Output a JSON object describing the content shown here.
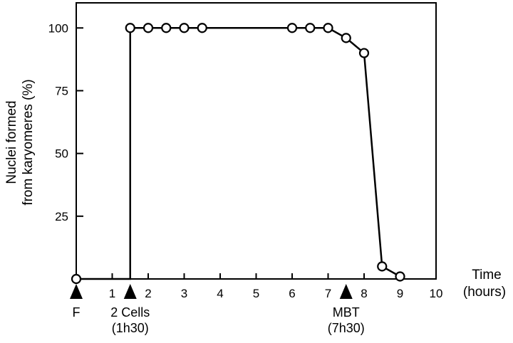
{
  "chart_data": {
    "type": "line",
    "ylabel_lines": [
      "Nuclei formed",
      "from karyomeres (%)"
    ],
    "xlabel_lines": [
      "Time",
      "(hours)"
    ],
    "xlim": [
      0,
      10
    ],
    "ylim": [
      0,
      110
    ],
    "x_ticks": [
      "1",
      "2",
      "3",
      "4",
      "5",
      "6",
      "7",
      "8",
      "9",
      "10"
    ],
    "y_ticks": [
      "25",
      "50",
      "75",
      "100"
    ],
    "grid": false,
    "series": [
      {
        "x": [
          0,
          1.5,
          1.5,
          2.0,
          2.5,
          3.0,
          3.5,
          6.0,
          6.5,
          7.0,
          7.5,
          8.0,
          8.5,
          9.0
        ],
        "y": [
          0,
          0,
          100,
          100,
          100,
          100,
          100,
          100,
          100,
          100,
          96,
          90,
          5,
          1
        ],
        "markers": [
          {
            "x": 0,
            "y": 0
          },
          {
            "x": 1.5,
            "y": 100
          },
          {
            "x": 2.0,
            "y": 100
          },
          {
            "x": 2.5,
            "y": 100
          },
          {
            "x": 3.0,
            "y": 100
          },
          {
            "x": 3.5,
            "y": 100
          },
          {
            "x": 6.0,
            "y": 100
          },
          {
            "x": 6.5,
            "y": 100
          },
          {
            "x": 7.0,
            "y": 100
          },
          {
            "x": 7.5,
            "y": 96
          },
          {
            "x": 8.0,
            "y": 90
          },
          {
            "x": 8.5,
            "y": 5
          },
          {
            "x": 9.0,
            "y": 1
          }
        ]
      }
    ],
    "annotations": [
      {
        "x": 0,
        "lines": [
          "F"
        ]
      },
      {
        "x": 1.5,
        "lines": [
          "2 Cells",
          "(1h30)"
        ]
      },
      {
        "x": 7.5,
        "lines": [
          "MBT",
          "(7h30)"
        ]
      }
    ]
  }
}
